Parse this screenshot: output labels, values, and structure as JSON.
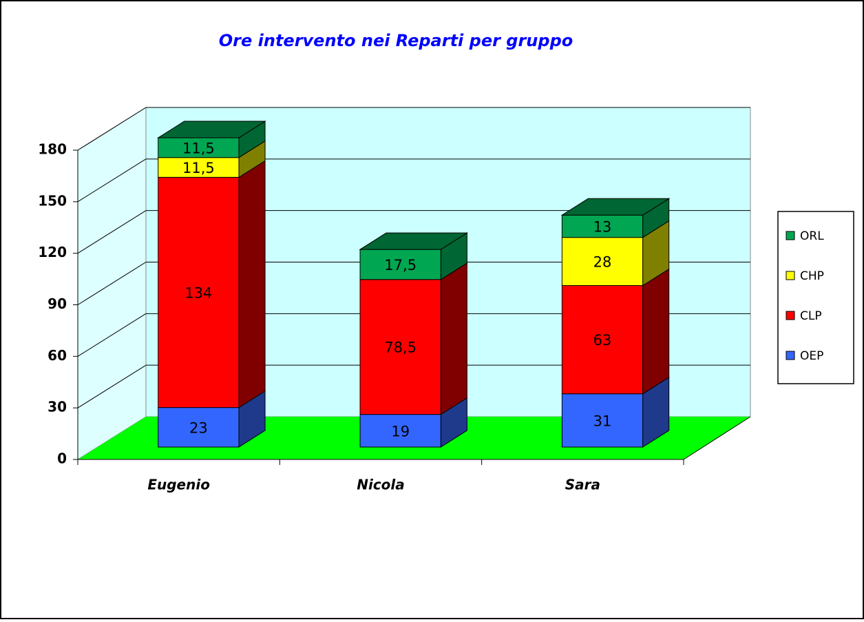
{
  "chart_data": {
    "type": "bar3d_stacked",
    "title": "Ore intervento nei Reparti per gruppo",
    "categories": [
      "Eugenio",
      "Nicola",
      "Sara"
    ],
    "series": [
      {
        "name": "OEP",
        "color": "#3366ff",
        "side": "#1f3a8a",
        "values": [
          23,
          19,
          31
        ],
        "value_labels": [
          "23",
          "19",
          "31"
        ]
      },
      {
        "name": "CLP",
        "color": "#ff0000",
        "side": "#800000",
        "values": [
          134,
          78.5,
          63
        ],
        "value_labels": [
          "134",
          "78,5",
          "63"
        ]
      },
      {
        "name": "CHP",
        "color": "#ffff00",
        "side": "#808000",
        "values": [
          11.5,
          null,
          28
        ],
        "value_labels": [
          "11,5",
          null,
          "28"
        ]
      },
      {
        "name": "ORL",
        "color": "#00a651",
        "side": "#006633",
        "values": [
          11.5,
          17.5,
          13
        ],
        "value_labels": [
          "11,5",
          "17,5",
          "13"
        ]
      }
    ],
    "ylim": [
      0,
      180
    ],
    "yticks": [
      0,
      30,
      60,
      90,
      120,
      150,
      180
    ],
    "grid": true,
    "legend": "right"
  }
}
